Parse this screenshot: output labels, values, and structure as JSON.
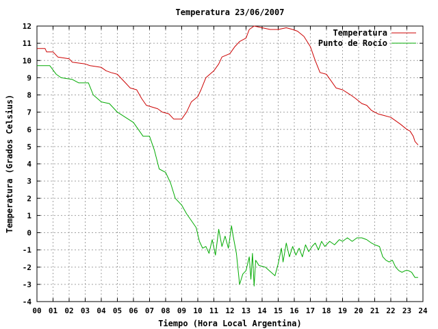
{
  "chart_data": {
    "type": "line",
    "title": "Temperatura 23/06/2007",
    "xlabel": "Tiempo (Hora Local Argentina)",
    "ylabel": "Temperatura (Grados Celsius)",
    "xlim": [
      0,
      24
    ],
    "ylim": [
      -4,
      12
    ],
    "xticks": [
      "00",
      "01",
      "02",
      "03",
      "04",
      "05",
      "06",
      "07",
      "08",
      "09",
      "10",
      "11",
      "12",
      "13",
      "14",
      "15",
      "16",
      "17",
      "18",
      "19",
      "20",
      "21",
      "22",
      "23",
      "24"
    ],
    "yticks": [
      -4,
      -3,
      -2,
      -1,
      0,
      1,
      2,
      3,
      4,
      5,
      6,
      7,
      8,
      9,
      10,
      11,
      12
    ],
    "grid": true,
    "legend_position": "top-right",
    "series": [
      {
        "name": "Temperatura",
        "color": "#cc0000",
        "points": [
          [
            0.0,
            10.7
          ],
          [
            0.5,
            10.7
          ],
          [
            0.6,
            10.5
          ],
          [
            1.0,
            10.5
          ],
          [
            1.3,
            10.2
          ],
          [
            2.0,
            10.1
          ],
          [
            2.2,
            9.9
          ],
          [
            3.0,
            9.8
          ],
          [
            3.3,
            9.7
          ],
          [
            4.0,
            9.6
          ],
          [
            4.3,
            9.4
          ],
          [
            4.6,
            9.3
          ],
          [
            5.0,
            9.2
          ],
          [
            5.2,
            9.0
          ],
          [
            5.5,
            8.7
          ],
          [
            5.8,
            8.4
          ],
          [
            6.2,
            8.3
          ],
          [
            6.5,
            7.8
          ],
          [
            6.8,
            7.4
          ],
          [
            7.5,
            7.2
          ],
          [
            7.8,
            7.0
          ],
          [
            8.2,
            6.9
          ],
          [
            8.5,
            6.6
          ],
          [
            9.0,
            6.6
          ],
          [
            9.3,
            7.0
          ],
          [
            9.6,
            7.6
          ],
          [
            10.0,
            7.9
          ],
          [
            10.2,
            8.3
          ],
          [
            10.5,
            9.0
          ],
          [
            11.0,
            9.4
          ],
          [
            11.3,
            9.8
          ],
          [
            11.5,
            10.2
          ],
          [
            12.0,
            10.4
          ],
          [
            12.3,
            10.8
          ],
          [
            12.6,
            11.1
          ],
          [
            13.0,
            11.3
          ],
          [
            13.2,
            11.8
          ],
          [
            13.5,
            12.0
          ],
          [
            14.0,
            11.9
          ],
          [
            14.5,
            11.8
          ],
          [
            15.0,
            11.8
          ],
          [
            15.5,
            11.9
          ],
          [
            15.9,
            11.8
          ],
          [
            16.2,
            11.7
          ],
          [
            16.6,
            11.4
          ],
          [
            17.0,
            10.8
          ],
          [
            17.3,
            10.0
          ],
          [
            17.6,
            9.3
          ],
          [
            18.0,
            9.2
          ],
          [
            18.3,
            8.8
          ],
          [
            18.6,
            8.4
          ],
          [
            19.0,
            8.3
          ],
          [
            19.5,
            8.0
          ],
          [
            19.8,
            7.8
          ],
          [
            20.2,
            7.5
          ],
          [
            20.5,
            7.4
          ],
          [
            20.8,
            7.1
          ],
          [
            21.2,
            6.9
          ],
          [
            21.6,
            6.8
          ],
          [
            22.0,
            6.7
          ],
          [
            22.3,
            6.5
          ],
          [
            22.6,
            6.3
          ],
          [
            23.0,
            6.0
          ],
          [
            23.2,
            5.9
          ],
          [
            23.4,
            5.6
          ],
          [
            23.5,
            5.3
          ],
          [
            23.7,
            5.1
          ]
        ]
      },
      {
        "name": "Punto de Rocío",
        "color": "#00aa00",
        "points": [
          [
            0.0,
            9.7
          ],
          [
            0.8,
            9.7
          ],
          [
            1.2,
            9.2
          ],
          [
            1.5,
            9.0
          ],
          [
            2.2,
            8.9
          ],
          [
            2.6,
            8.7
          ],
          [
            3.2,
            8.7
          ],
          [
            3.5,
            8.0
          ],
          [
            4.0,
            7.6
          ],
          [
            4.5,
            7.5
          ],
          [
            5.0,
            7.0
          ],
          [
            5.5,
            6.7
          ],
          [
            6.0,
            6.4
          ],
          [
            6.3,
            6.0
          ],
          [
            6.6,
            5.6
          ],
          [
            7.0,
            5.6
          ],
          [
            7.3,
            4.8
          ],
          [
            7.6,
            3.7
          ],
          [
            8.0,
            3.5
          ],
          [
            8.3,
            2.9
          ],
          [
            8.6,
            2.0
          ],
          [
            9.0,
            1.6
          ],
          [
            9.3,
            1.1
          ],
          [
            9.6,
            0.7
          ],
          [
            9.9,
            0.3
          ],
          [
            10.1,
            -0.5
          ],
          [
            10.3,
            -0.9
          ],
          [
            10.5,
            -0.8
          ],
          [
            10.7,
            -1.2
          ],
          [
            10.9,
            -0.4
          ],
          [
            11.1,
            -1.3
          ],
          [
            11.3,
            0.2
          ],
          [
            11.5,
            -0.8
          ],
          [
            11.7,
            -0.2
          ],
          [
            11.9,
            -0.9
          ],
          [
            12.1,
            0.4
          ],
          [
            12.2,
            -0.2
          ],
          [
            12.4,
            -1.2
          ],
          [
            12.6,
            -3.0
          ],
          [
            12.8,
            -2.4
          ],
          [
            13.0,
            -2.2
          ],
          [
            13.2,
            -1.4
          ],
          [
            13.3,
            -2.7
          ],
          [
            13.4,
            -1.2
          ],
          [
            13.5,
            -3.1
          ],
          [
            13.6,
            -1.6
          ],
          [
            13.8,
            -1.9
          ],
          [
            14.2,
            -2.0
          ],
          [
            14.8,
            -2.5
          ],
          [
            15.0,
            -1.8
          ],
          [
            15.2,
            -0.9
          ],
          [
            15.3,
            -1.7
          ],
          [
            15.5,
            -0.6
          ],
          [
            15.7,
            -1.4
          ],
          [
            15.9,
            -0.8
          ],
          [
            16.1,
            -1.3
          ],
          [
            16.3,
            -0.9
          ],
          [
            16.5,
            -1.4
          ],
          [
            16.7,
            -0.7
          ],
          [
            16.9,
            -1.1
          ],
          [
            17.1,
            -0.8
          ],
          [
            17.3,
            -0.6
          ],
          [
            17.5,
            -1.0
          ],
          [
            17.7,
            -0.5
          ],
          [
            17.9,
            -0.8
          ],
          [
            18.2,
            -0.5
          ],
          [
            18.5,
            -0.7
          ],
          [
            18.8,
            -0.4
          ],
          [
            19.0,
            -0.5
          ],
          [
            19.3,
            -0.3
          ],
          [
            19.6,
            -0.5
          ],
          [
            19.9,
            -0.3
          ],
          [
            20.2,
            -0.3
          ],
          [
            20.5,
            -0.4
          ],
          [
            20.8,
            -0.6
          ],
          [
            21.0,
            -0.7
          ],
          [
            21.3,
            -0.8
          ],
          [
            21.5,
            -1.4
          ],
          [
            21.7,
            -1.6
          ],
          [
            21.9,
            -1.7
          ],
          [
            22.1,
            -1.6
          ],
          [
            22.3,
            -2.0
          ],
          [
            22.5,
            -2.2
          ],
          [
            22.7,
            -2.3
          ],
          [
            22.9,
            -2.2
          ],
          [
            23.1,
            -2.2
          ],
          [
            23.3,
            -2.3
          ],
          [
            23.5,
            -2.6
          ],
          [
            23.7,
            -2.6
          ]
        ]
      }
    ]
  }
}
